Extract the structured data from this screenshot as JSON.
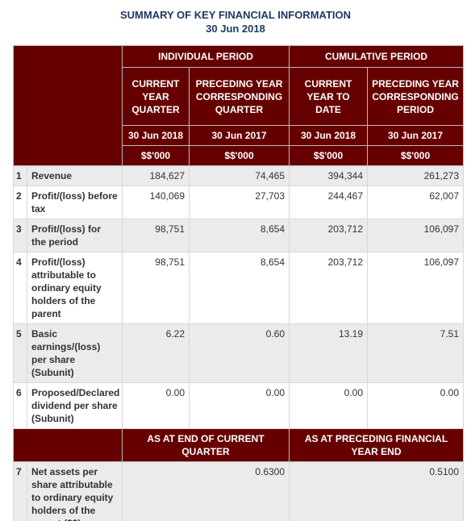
{
  "header": {
    "title": "SUMMARY OF KEY FINANCIAL INFORMATION",
    "date": "30 Jun 2018"
  },
  "table": {
    "group_headers": [
      "INDIVIDUAL PERIOD",
      "CUMULATIVE PERIOD"
    ],
    "column_headers": [
      "CURRENT YEAR QUARTER",
      "PRECEDING YEAR CORRESPONDING QUARTER",
      "CURRENT YEAR TO DATE",
      "PRECEDING YEAR CORRESPONDING PERIOD"
    ],
    "dates": [
      "30 Jun 2018",
      "30 Jun 2017",
      "30 Jun 2018",
      "30 Jun 2017"
    ],
    "units": [
      "$$'000",
      "$$'000",
      "$$'000",
      "$$'000"
    ],
    "rows": [
      {
        "number": "1",
        "label": "Revenue",
        "values": [
          "184,627",
          "74,465",
          "394,344",
          "261,273"
        ]
      },
      {
        "number": "2",
        "label": "Profit/(loss) before tax",
        "values": [
          "140,069",
          "27,703",
          "244,467",
          "62,007"
        ]
      },
      {
        "number": "3",
        "label": "Profit/(loss) for the period",
        "values": [
          "98,751",
          "8,654",
          "203,712",
          "106,097"
        ]
      },
      {
        "number": "4",
        "label": "Profit/(loss) attributable to ordinary equity holders of the parent",
        "values": [
          "98,751",
          "8,654",
          "203,712",
          "106,097"
        ]
      },
      {
        "number": "5",
        "label": "Basic earnings/(loss) per share (Subunit)",
        "values": [
          "6.22",
          "0.60",
          "13.19",
          "7.51"
        ]
      },
      {
        "number": "6",
        "label": "Proposed/Declared dividend per share (Subunit)",
        "values": [
          "0.00",
          "0.00",
          "0.00",
          "0.00"
        ]
      }
    ],
    "position_headers": [
      "AS AT END OF CURRENT QUARTER",
      "AS AT PRECEDING FINANCIAL YEAR END"
    ],
    "position_row": {
      "number": "7",
      "label": "Net assets per share attributable to ordinary equity holders of the parent ($$)",
      "values": [
        "0.6300",
        "0.5100"
      ]
    }
  }
}
